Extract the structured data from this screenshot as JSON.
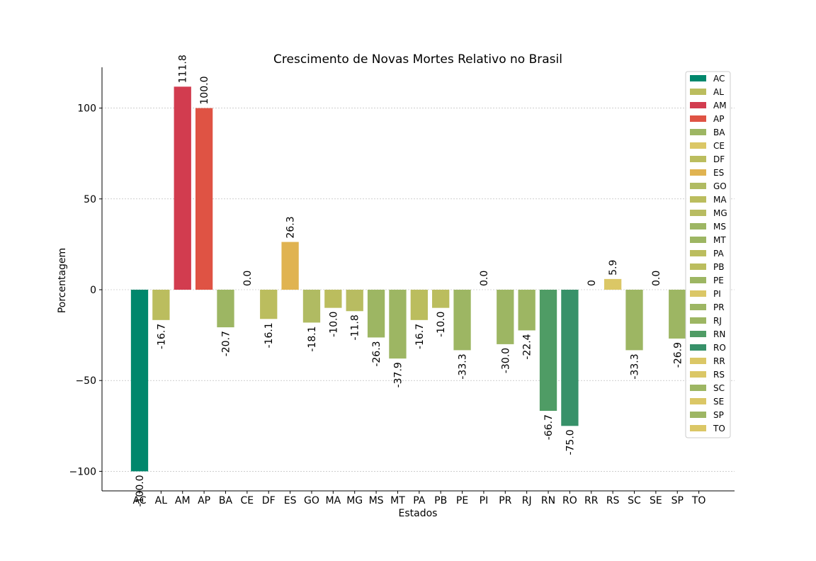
{
  "chart_data": {
    "type": "bar",
    "title": "Crescimento de Novas Mortes Relativo no Brasil",
    "xlabel": "Estados",
    "ylabel": "Porcentagem",
    "ylim": [
      -111,
      122
    ],
    "yticks": [
      100,
      50,
      0,
      -50,
      -100
    ],
    "ytick_labels": [
      "100",
      "50",
      "0",
      "−50",
      "−100"
    ],
    "grid": true,
    "legend_position": "top-right",
    "categories": [
      "AC",
      "AL",
      "AM",
      "AP",
      "BA",
      "CE",
      "DF",
      "ES",
      "GO",
      "MA",
      "MG",
      "MS",
      "MT",
      "PA",
      "PB",
      "PE",
      "PI",
      "PR",
      "RJ",
      "RN",
      "RO",
      "RR",
      "RS",
      "SC",
      "SE",
      "SP",
      "TO"
    ],
    "values": [
      -100.0,
      -16.7,
      111.8,
      100.0,
      -20.7,
      0.0,
      -16.1,
      26.3,
      -18.1,
      -10.0,
      -11.8,
      -26.3,
      -37.9,
      -16.7,
      -10.0,
      -33.3,
      0.0,
      -30.0,
      -22.4,
      -66.7,
      -75.0,
      0,
      5.9,
      -33.3,
      0.0,
      -26.9,
      0
    ],
    "value_labels": [
      "-100.0",
      "-16.7",
      "111.8",
      "100.0",
      "-20.7",
      "0.0",
      "-16.1",
      "26.3",
      "-18.1",
      "-10.0",
      "-11.8",
      "-26.3",
      "-37.9",
      "-16.7",
      "-10.0",
      "-33.3",
      "0.0",
      "-30.0",
      "-22.4",
      "-66.7",
      "-75.0",
      "0",
      "5.9",
      "-33.3",
      "0.0",
      "-26.9",
      ""
    ],
    "colors": [
      "#00876c",
      "#bbbd5e",
      "#d23c4f",
      "#df5344",
      "#9db663",
      "#dbc766",
      "#bbbd5e",
      "#e0b351",
      "#b0bb62",
      "#bbbd5e",
      "#b8bc61",
      "#9db663",
      "#9db663",
      "#bbbd5e",
      "#bbbd5e",
      "#9db663",
      "#dbc766",
      "#9db663",
      "#9db663",
      "#4f9c65",
      "#379169",
      "#dbc766",
      "#dbc766",
      "#9db663",
      "#dbc766",
      "#9db663",
      "#dbc766"
    ]
  }
}
